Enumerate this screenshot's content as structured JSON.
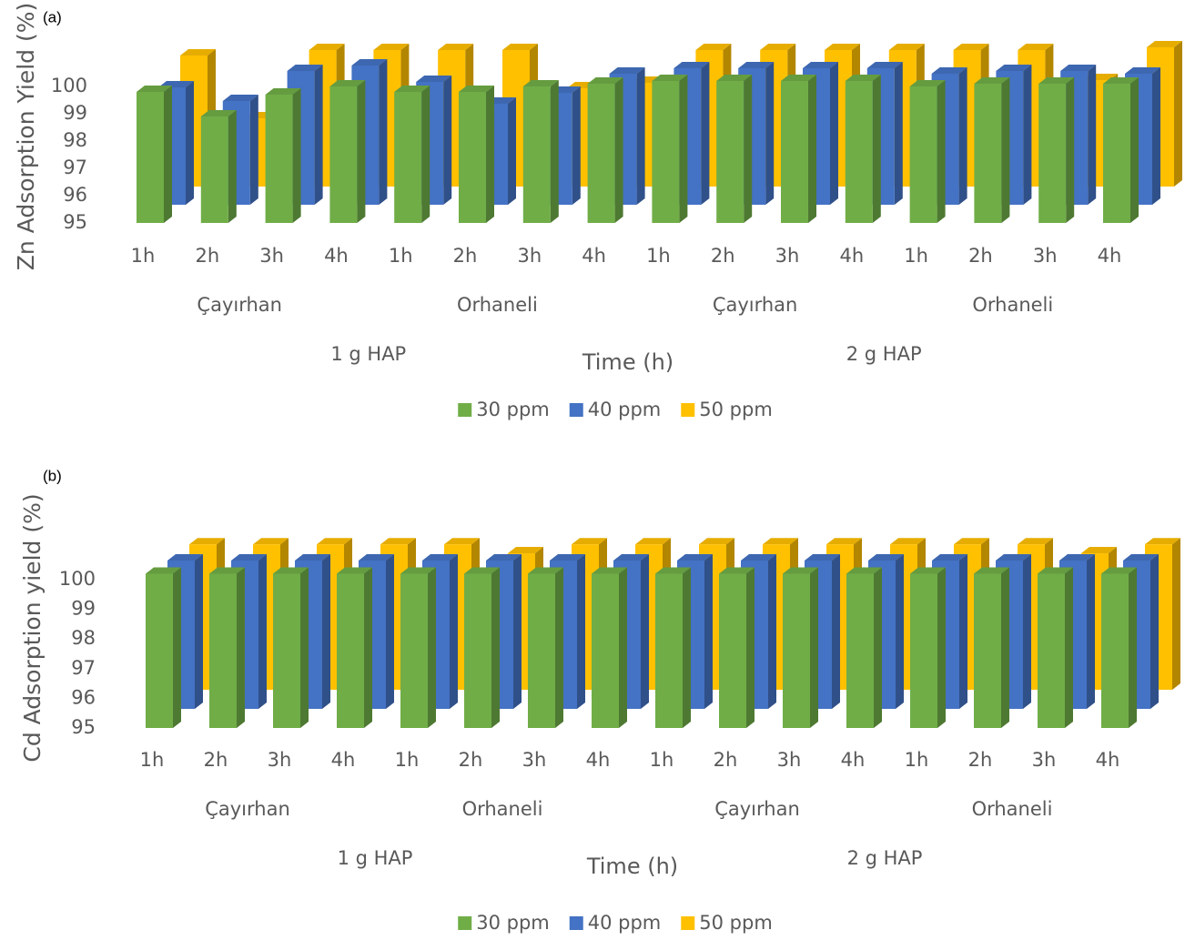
{
  "chart_data": [
    {
      "type": "bar",
      "panel_label": "(a)",
      "y_label": "Zn Adsorption Yield (%)",
      "x_label": "Time (h)",
      "categories": [
        "1h",
        "2h",
        "3h",
        "4h",
        "1h",
        "2h",
        "3h",
        "4h",
        "1h",
        "2h",
        "3h",
        "4h",
        "1h",
        "2h",
        "3h",
        "4h"
      ],
      "groups": [
        "Çayırhan",
        "Orhaneli",
        "Çayırhan",
        "Orhaneli"
      ],
      "supergroups": [
        "1 g HAP",
        "2 g HAP"
      ],
      "series": [
        {
          "name": "30 ppm",
          "color": "#70ad47",
          "values": [
            99.8,
            98.9,
            99.7,
            100.0,
            99.8,
            99.8,
            100.0,
            100.1,
            100.2,
            100.2,
            100.2,
            100.2,
            100.0,
            100.1,
            100.1,
            100.1
          ]
        },
        {
          "name": "40 ppm",
          "color": "#4472c4",
          "values": [
            99.3,
            98.8,
            99.9,
            100.1,
            99.5,
            98.7,
            99.1,
            99.8,
            100.0,
            100.0,
            100.0,
            100.0,
            99.8,
            99.9,
            99.9,
            99.8
          ]
        },
        {
          "name": "50 ppm",
          "color": "#ffc000",
          "values": [
            99.8,
            97.5,
            100.0,
            100.0,
            100.0,
            100.0,
            98.6,
            98.8,
            100.0,
            100.0,
            100.0,
            100.0,
            100.0,
            100.0,
            98.9,
            100.1
          ]
        }
      ],
      "ylim": [
        95,
        100
      ],
      "yticks": [
        95,
        96,
        97,
        98,
        99,
        100
      ],
      "legend": "bottom"
    },
    {
      "type": "bar",
      "panel_label": "(b)",
      "y_label": "Cd Adsorption yield (%)",
      "x_label": "Time (h)",
      "categories": [
        "1h",
        "2h",
        "3h",
        "4h",
        "1h",
        "2h",
        "3h",
        "4h",
        "1h",
        "2h",
        "3h",
        "4h",
        "1h",
        "2h",
        "3h",
        "4h"
      ],
      "groups": [
        "Çayırhan",
        "Orhaneli",
        "Çayırhan",
        "Orhaneli"
      ],
      "supergroups": [
        "1 g HAP",
        "2 g HAP"
      ],
      "series": [
        {
          "name": "30 ppm",
          "color": "#70ad47",
          "values": [
            100.2,
            100.2,
            100.2,
            100.2,
            100.2,
            100.2,
            100.2,
            100.2,
            100.2,
            100.2,
            100.2,
            100.2,
            100.2,
            100.2,
            100.2,
            100.2
          ]
        },
        {
          "name": "40 ppm",
          "color": "#4472c4",
          "values": [
            100.0,
            100.0,
            100.0,
            100.0,
            100.0,
            100.0,
            100.0,
            100.0,
            100.0,
            100.0,
            100.0,
            100.0,
            100.0,
            100.0,
            100.0,
            100.0
          ]
        },
        {
          "name": "50 ppm",
          "color": "#ffc000",
          "values": [
            99.9,
            99.9,
            99.9,
            99.9,
            99.9,
            99.6,
            99.9,
            99.9,
            99.9,
            99.9,
            99.9,
            99.9,
            99.9,
            99.9,
            99.6,
            99.9
          ]
        }
      ],
      "ylim": [
        95,
        100
      ],
      "yticks": [
        95,
        96,
        97,
        98,
        99,
        100
      ],
      "legend": "bottom"
    }
  ]
}
